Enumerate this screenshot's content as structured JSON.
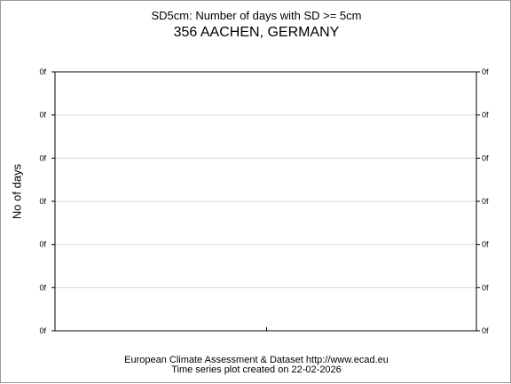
{
  "chart_data": {
    "type": "line",
    "title": "SD5cm: Number of days with SD >= 5cm",
    "subtitle": "356 AACHEN, GERMANY",
    "xlabel": "",
    "ylabel": "No of days",
    "y_tick_labels": [
      "0f",
      "0f",
      "0f",
      "0f",
      "0f",
      "0f",
      "0f"
    ],
    "x_tick_labels": [],
    "series": [],
    "grid": true,
    "legend": "none"
  },
  "footer": {
    "line1": "European Climate Assessment & Dataset  http://www.ecad.eu",
    "line2": "Time series plot created on 22-02-2026"
  }
}
